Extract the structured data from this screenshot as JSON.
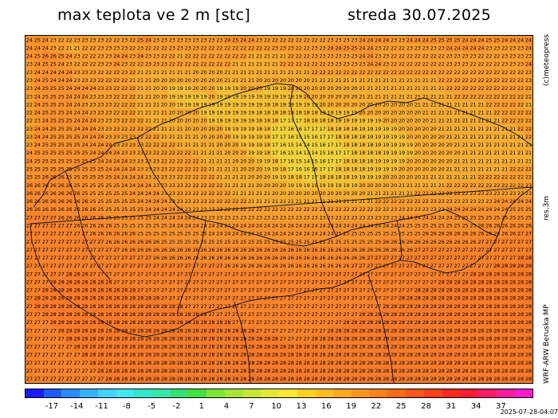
{
  "header": {
    "title": "max teplota ve 2 m [stc]",
    "date": "streda 30.07.2025"
  },
  "side_labels": {
    "copyright": "(c)meteopress",
    "resolution": "res.3m",
    "model": "WRF-ARW Beruska MP"
  },
  "timestamp": "2025-07-28-04:07",
  "colorbar": {
    "labels": [
      "-17",
      "-14",
      "-11",
      "-8",
      "-5",
      "-2",
      "1",
      "4",
      "7",
      "10",
      "13",
      "16",
      "19",
      "22",
      "25",
      "28",
      "31",
      "34",
      "37"
    ],
    "colors": [
      "#1a1aff",
      "#1f5cff",
      "#2a8cff",
      "#33b3ff",
      "#40d4ff",
      "#40e6f2",
      "#33e6cc",
      "#33e6a6",
      "#33e073",
      "#40e040",
      "#80e633",
      "#a6e633",
      "#c8e633",
      "#e6e633",
      "#ffe633",
      "#ffd11a",
      "#ffbf1a",
      "#ffa81a",
      "#ff9419",
      "#ff8019",
      "#ff6a19",
      "#ff5519",
      "#ff3f19",
      "#ff2a19",
      "#ff1a33",
      "#ff1a66",
      "#ff1a99",
      "#ff1acc"
    ]
  },
  "map": {
    "grid_rows": [
      "24 25 24 23 22 22 23 23 23 23 22 22 23 22 25 24 23 23 23 23 23 23 23 23 23 24 25 24 24 23 22 22 22 22 22 22 22 22 23 23 23 23 24 24 24 24 23 23 24 24 24 25 25 25 25 24 24 24 25 25 24 24 24 24",
      "24 24 24 23 22 21 21 22 22 23 23 23 23 22 23 22 22 22 23 23 23 23 22 22 22 22 22 22 22 22 22 23 23 23 22 22 23 23 24 24 25 25 24 24 23 22 22 22 23 23 23 23 23 24 24 24 24 24 23 23 22 23 23 24",
      "24 25 26 26 25 24 23 22 22 23 23 24 24 23 24 23 23 22 22 21 22 22 22 22 22 22 22 22 21 21 21 21 21 22 22 22 23 23 23 23 23 23 24 24 23 23 22 22 22 22 22 22 22 23 23 23 23 22 22 22 23 23 23 23",
      "23 24 25 25 24 23 22 22 22 23 23 24 23 22 22 23 23 23 22 22 22 22 22 22 22 22 21 21 21 21 21 21 22 22 22 22 22 22 23 23 23 23 23 24 24 23 22 22 22 22 22 22 22 23 23 23 22 22 22 22 23 23 23 24",
      "23 24 24 24 24 24 23 23 23 22 22 22 23 22 21 21 21 21 21 21 21 20 20 20 20 21 21 21 21 21 21 21 21 21 21 21 22 22 22 22 22 22 22 22 22 22 22 22 22 22 22 22 22 22 22 22 22 22 22 22 22 22 22 23",
      "23 24 25 24 24 24 23 23 23 22 22 22 22 21 21 21 20 20 20 20 20 20 20 20 20 21 21 21 21 20 20 20 20 20 20 20 21 21 21 21 21 21 21 21 21 21 21 21 21 21 21 21 22 22 22 22 22 22 22 22 22 22 22 23",
      "23 24 25 25 25 24 24 24 24 23 23 22 22 22 21 21 20 20 19 19 19 20 20 20 19 19 19 20 20 20 19 19 19 20 20 20 20 20 20 20 20 20 21 21 21 21 21 21 21 21 21 21 21 22 22 22 22 22 22 22 22 22 22 22",
      "23 24 25 25 25 24 24 24 23 23 23 22 22 22 21 21 20 20 19 19 19 19 19 20 19 19 19 19 19 19 19 19 19 19 19 20 20 20 20 20 20 20 21 21 21 21 21 21 21 21 21 21 21 21 22 22 22 22 22 22 22 22 22 22",
      "22 24 25 25 25 24 24 23 23 23 23 22 22 22 21 21 21 20 20 19 19 19 19 19 19 19 19 19 19 19 18 18 19 19 19 19 19 20 20 20 20 20 20 20 20 20 20 20 20 21 21 21 21 21 21 21 21 21 22 22 22 22 22 21",
      "22 24 25 25 25 24 24 24 23 23 23 22 22 22 21 21 21 21 20 20 20 20 19 19 19 19 19 19 19 18 18 18 18 18 18 18 18 19 19 19 19 19 20 20 20 20 20 20 20 20 21 21 21 21 21 21 21 21 21 22 22 22 22 22",
      "22 23 24 25 25 25 24 24 24 23 23 23 22 22 22 21 21 21 20 20 20 20 20 19 19 19 19 19 19 18 18 18 17 17 17 18 18 18 18 19 19 19 19 19 19 20 20 20 20 20 20 21 21 21 21 21 21 21 21 21 22 22 22 22",
      "23 24 24 25 25 25 24 24 24 23 23 23 22 22 22 22 21 21 21 21 20 20 20 20 20 19 19 19 19 18 18 17 17 16 16 17 17 17 18 18 18 18 19 19 19 19 19 20 20 20 20 20 21 21 21 21 21 21 21 21 21 21 22 22",
      "23 24 24 25 25 25 25 24 24 24 23 23 23 23 22 22 22 21 21 21 21 21 20 20 20 20 19 19 19 19 18 17 17 16 15 15 16 17 17 18 18 18 18 19 19 19 19 19 20 20 20 20 20 21 21 21 21 21 21 21 21 21 21 22",
      "23 24 25 25 25 25 25 24 24 24 24 23 23 23 23 22 22 22 22 21 21 21 21 21 20 20 20 19 19 19 18 17 16 15 14 14 15 16 17 17 18 18 18 18 19 19 19 19 19 20 20 20 20 20 21 21 21 21 21 21 21 21 21 21",
      "24 25 25 25 25 25 25 25 24 24 24 24 23 23 23 23 22 22 22 22 22 21 21 21 21 20 20 20 19 19 18 17 16 15 14 13 14 15 16 17 17 18 18 18 18 19 19 19 19 20 20 20 20 20 20 21 21 21 21 21 21 21 21 21",
      "24 25 25 25 25 25 25 25 25 24 24 24 24 23 23 23 23 22 22 22 22 22 21 21 21 21 20 20 20 19 19 18 17 16 15 14 15 16 17 17 18 18 18 18 19 19 19 19 20 20 20 20 20 20 21 21 21 21 21 21 21 21 21 21",
      "25 25 25 25 25 25 25 25 25 25 24 24 24 24 23 23 23 23 22 22 22 22 22 21 21 21 21 20 20 20 19 19 18 17 16 16 16 17 17 18 18 18 18 19 19 19 19 20 20 20 20 20 20 21 21 21 21 21 21 21 21 22 22 22",
      "25 25 26 26 26 25 25 25 25 25 25 24 24 24 24 23 23 23 23 22 22 22 22 22 21 21 21 21 20 20 20 19 19 18 18 17 17 18 18 18 18 19 19 19 19 20 20 20 20 20 21 21 21 21 21 21 21 22 22 22 22 22 22 22",
      "26 26 26 26 26 26 25 25 25 25 25 25 24 24 24 24 23 23 23 23 22 22 22 22 22 21 21 21 21 20 20 20 20 19 19 19 19 19 19 19 19 19 20 20 20 20 20 21 21 21 21 21 21 22 22 22 22 22 22 22 22 22 22 23",
      "26 26 26 26 26 26 26 25 25 25 25 25 25 24 24 24 24 23 23 23 23 22 22 22 22 22 21 21 21 21 21 20 20 20 20 20 20 20 20 20 20 20 20 21 21 21 21 21 21 22 22 22 22 22 22 22 23 23 23 23 23 23 23 23",
      "26 26 26 26 26 26 26 26 25 25 25 25 25 25 24 24 24 24 23 23 23 23 23 22 22 22 22 22 21 21 21 21 21 21 21 21 21 21 21 21 21 21 21 21 22 22 22 22 22 22 22 23 23 23 23 23 23 23 23 24 24 24 24 24",
      "26 26 26 26 26 26 26 26 26 25 25 25 25 25 25 24 24 24 24 24 23 23 23 23 23 22 22 22 22 22 22 22 22 22 22 22 22 22 22 22 22 22 22 22 22 22 23 23 23 23 23 23 23 24 24 24 24 24 24 24 24 25 25 25",
      "27 27 27 27 26 26 26 26 26 26 25 25 25 25 25 25 24 24 24 24 24 24 23 23 23 23 23 23 23 23 23 23 23 23 23 23 23 23 23 23 23 23 23 23 23 23 23 24 24 24 24 24 24 24 25 25 25 25 25 25 25 25 25 25",
      "27 27 27 27 27 27 26 26 26 26 26 25 25 25 25 25 25 25 24 24 24 24 24 24 24 24 24 24 24 24 24 24 24 24 24 24 24 24 24 24 24 24 24 24 24 24 24 24 25 25 25 25 25 25 25 25 25 26 26 26 26 26 26 26",
      "27 27 27 27 27 27 27 27 26 26 26 26 26 26 25 25 25 25 25 25 25 25 25 24 24 24 24 24 24 24 24 24 24 24 24 24 24 24 24 25 25 25 25 25 25 25 25 25 25 25 26 26 26 26 26 26 26 26 26 26 26 26 27 27",
      "27 27 27 27 27 27 27 27 27 27 26 26 26 26 26 26 26 25 25 25 25 25 25 25 25 25 25 25 25 25 25 25 25 25 25 25 25 25 25 25 25 25 25 25 25 26 26 26 26 26 26 26 26 26 26 26 26 27 27 27 27 27 27 27",
      "27 27 27 27 27 27 27 27 27 27 27 27 26 26 26 26 26 26 26 26 26 26 26 26 26 26 26 26 26 26 26 26 26 26 26 26 26 26 26 26 26 26 26 26 26 26 26 26 26 27 27 27 27 27 27 27 27 27 27 27 27 27 27 27",
      "27 27 27 27 27 27 27 27 27 27 27 27 27 27 27 27 26 26 26 26 26 26 26 26 26 26 26 26 26 26 26 26 26 26 26 26 26 26 26 26 26 26 26 27 27 27 27 27 27 27 27 27 27 27 27 27 27 27 27 27 27 27 28 28",
      "27 27 27 27 27 27 27 27 27 27 27 27 27 27 27 27 27 27 27 27 27 27 27 27 27 26 26 26 26 26 26 26 26 26 26 26 26 26 26 26 26 27 27 27 27 27 27 27 27 27 27 27 27 27 27 27 27 27 27 28 28 28 28 28",
      "27 27 27 27 27 28 28 28 27 27 27 27 27 27 27 27 27 27 27 27 27 27 27 27 27 27 27 27 27 27 27 27 27 27 27 27 27 27 27 27 27 27 27 27 27 27 27 27 27 27 27 27 27 27 27 27 28 28 28 28 28 28 28 28",
      "27 27 27 28 28 28 28 28 28 28 28 27 27 27 27 27 27 27 27 27 27 27 27 27 27 27 27 27 27 27 27 27 27 27 27 27 27 27 27 27 27 27 27 27 27 27 27 27 27 27 27 27 28 28 28 28 28 28 28 28 28 28 28 28",
      "27 27 28 28 28 28 28 28 28 28 28 28 28 28 27 27 27 27 27 27 27 27 27 27 27 27 27 27 27 27 27 27 27 27 27 27 27 27 27 27 27 27 27 27 27 27 27 27 27 28 28 28 28 28 28 28 28 28 28 28 28 28 28 28",
      "27 28 28 28 28 28 28 28 28 28 28 28 28 28 28 28 28 27 27 27 27 27 27 27 27 27 27 27 27 27 27 27 27 27 27 27 27 27 27 27 27 27 27 27 27 27 27 28 28 28 28 28 28 28 28 28 28 28 28 28 28 28 28 28",
      "27 28 28 28 28 28 28 28 28 28 28 28 28 28 28 28 28 28 28 28 27 27 27 27 27 27 27 27 27 27 27 27 27 27 27 27 27 27 27 27 27 27 27 27 27 28 28 28 28 28 28 28 28 28 28 28 28 28 28 28 28 28 28 28",
      "27 27 28 28 28 28 28 28 28 28 28 28 28 28 28 28 28 28 28 28 28 28 28 27 27 27 27 27 27 27 27 27 27 27 27 27 27 27 27 27 27 27 28 28 28 28 28 28 28 28 28 28 28 28 28 28 28 28 28 28 28 28 28 28",
      "27 27 27 28 28 28 28 28 28 28 28 28 28 28 28 28 28 28 28 28 28 28 28 28 28 28 27 27 27 27 27 27 27 27 27 27 27 27 27 27 28 28 28 28 28 28 28 28 28 28 28 28 28 28 28 28 28 28 28 28 28 28 28 28",
      "27 27 27 27 28 28 28 28 28 28 28 28 28 28 28 28 28 28 28 28 28 28 28 28 28 28 28 28 28 27 27 27 27 27 27 27 27 27 28 28 28 28 28 28 28 28 28 28 28 28 28 28 28 28 28 28 28 28 28 28 28 28 28 28",
      "27 27 27 27 27 28 28 28 28 28 28 28 28 28 28 28 28 28 28 28 28 28 28 28 28 28 28 28 28 28 28 28 27 27 27 27 28 28 28 28 28 28 28 28 28 28 28 28 28 28 28 28 28 28 28 28 28 28 28 28 28 28 28 28",
      "27 27 27 27 27 27 28 28 28 28 28 28 28 28 28 28 28 28 28 28 28 28 28 28 28 28 28 28 28 28 28 28 28 28 28 28 28 28 28 28 28 28 28 28 28 28 28 28 28 28 28 28 28 28 28 28 28 28 28 28 28 28 28 28",
      "27 27 27 27 27 27 27 28 28 28 28 28 28 28 28 28 28 28 28 28 28 28 28 28 28 28 28 28 28 28 28 28 28 28 28 28 28 28 28 28 28 28 28 28 28 28 28 28 28 28 28 28 28 28 28 28 28 28 28 28 28 28 28 28",
      "27 27 27 27 27 27 27 27 28 28 28 28 28 28 28 28 28 28 28 28 28 28 28 28 28 28 28 28 28 28 28 28 28 28 28 28 28 28 28 28 28 28 28 28 28 28 28 28 28 28 28 28 28 28 28 28 28 28 28 28 28 28 28 28",
      "27 27 27 27 27 27 27 27 27 28 28 28 28 28 28 28 28 28 28 28 28 28 28 28 28 28 28 28 28 28 28 28 28 28 28 28 28 28 28 28 28 28 28 28 28 28 28 28 28 28 28 28 28 28 28 28 28 28 28 28 28 28 28 28",
      "27 27 27 27 27 27 27 27 27 27 28 28 28 28 28 28 28 28 28 28 28 28 28 28 28 28 28 28 28 28 28 28 28 28 28 28 28 28 28 28 28 28 28 28 28 28 28 28 28 28 28 28 28 28 28 28 28 28 28 28 28 28 28 28"
    ]
  }
}
